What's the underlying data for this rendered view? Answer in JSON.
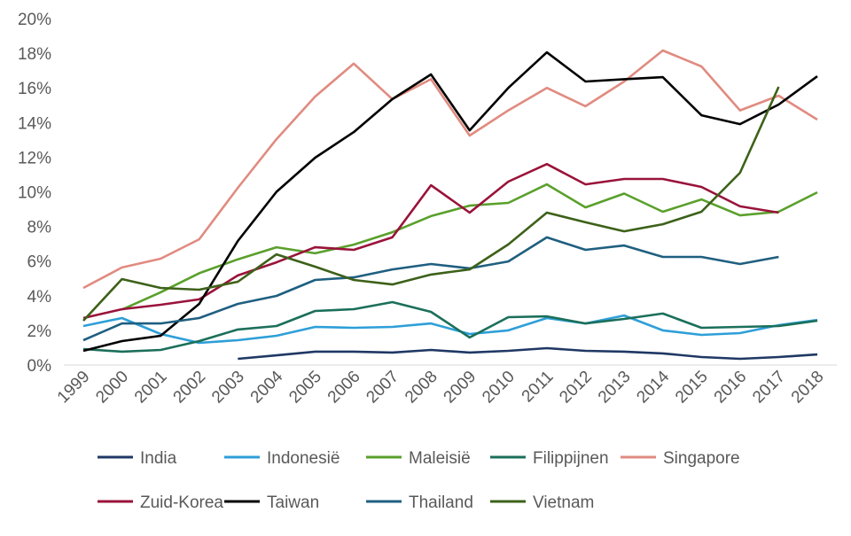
{
  "chart_data": {
    "type": "line",
    "title": "",
    "xlabel": "",
    "ylabel": "",
    "ylim": [
      0,
      20
    ],
    "y_ticks": [
      "0%",
      "2%",
      "4%",
      "6%",
      "8%",
      "10%",
      "12%",
      "14%",
      "16%",
      "18%",
      "20%"
    ],
    "grid": false,
    "legend_position": "bottom",
    "categories": [
      "1999",
      "2000",
      "2001",
      "2002",
      "2003",
      "2004",
      "2005",
      "2006",
      "2007",
      "2008",
      "2009",
      "2010",
      "2011",
      "2012",
      "2013",
      "2014",
      "2015",
      "2016",
      "2017",
      "2018"
    ],
    "series": [
      {
        "name": "India",
        "color": "#1f3864",
        "values": [
          null,
          null,
          null,
          null,
          0.36,
          0.56,
          0.77,
          0.77,
          0.72,
          0.87,
          0.72,
          0.82,
          0.97,
          0.82,
          0.77,
          0.67,
          0.46,
          0.36,
          0.46,
          0.61
        ]
      },
      {
        "name": "Indonesië",
        "color": "#2e9fd8",
        "values": [
          2.25,
          2.71,
          1.79,
          1.28,
          1.43,
          1.69,
          2.2,
          2.15,
          2.2,
          2.4,
          1.79,
          2.0,
          2.71,
          2.4,
          2.86,
          2.0,
          1.74,
          1.84,
          2.3,
          2.6
        ]
      },
      {
        "name": "Maleisië",
        "color": "#5aa02c",
        "values": [
          null,
          3.2,
          4.2,
          5.3,
          6.1,
          6.8,
          6.45,
          6.95,
          7.67,
          8.6,
          9.2,
          9.36,
          10.43,
          9.1,
          9.9,
          8.85,
          9.56,
          8.64,
          8.85,
          9.97
        ]
      },
      {
        "name": "Filippijnen",
        "color": "#1b6f5a",
        "values": [
          0.92,
          0.77,
          0.87,
          1.38,
          2.05,
          2.25,
          3.12,
          3.22,
          3.63,
          3.07,
          1.59,
          2.76,
          2.81,
          2.4,
          2.66,
          2.97,
          2.15,
          2.2,
          2.25,
          2.56
        ]
      },
      {
        "name": "Singapore",
        "color": "#e08b80",
        "values": [
          4.45,
          5.63,
          6.14,
          7.26,
          10.23,
          13.04,
          15.5,
          17.4,
          15.35,
          16.5,
          13.25,
          14.7,
          16.0,
          14.94,
          16.37,
          18.16,
          17.24,
          14.7,
          15.55,
          14.17
        ]
      },
      {
        "name": "Zuid-Korea",
        "color": "#99133a",
        "values": [
          2.71,
          3.22,
          3.48,
          3.79,
          5.17,
          5.93,
          6.8,
          6.65,
          7.37,
          10.38,
          8.8,
          10.59,
          11.6,
          10.43,
          10.74,
          10.74,
          10.28,
          9.16,
          8.8,
          null
        ]
      },
      {
        "name": "Taiwan",
        "color": "#000000",
        "values": [
          0.82,
          1.38,
          1.69,
          3.53,
          7.16,
          10.0,
          11.97,
          13.45,
          15.35,
          16.78,
          13.55,
          16.0,
          18.05,
          16.37,
          16.5,
          16.62,
          14.42,
          13.91,
          15.04,
          16.67
        ]
      },
      {
        "name": "Thailand",
        "color": "#1f5f80",
        "values": [
          1.43,
          2.4,
          2.4,
          2.71,
          3.53,
          3.99,
          4.91,
          5.06,
          5.52,
          5.83,
          5.58,
          5.98,
          7.37,
          6.65,
          6.9,
          6.24,
          6.24,
          5.83,
          6.24,
          null
        ]
      },
      {
        "name": "Vietnam",
        "color": "#3d6119",
        "values": [
          2.56,
          4.96,
          4.45,
          4.35,
          4.81,
          6.39,
          5.68,
          4.91,
          4.65,
          5.22,
          5.52,
          6.96,
          8.8,
          8.24,
          7.72,
          8.13,
          8.85,
          11.1,
          16.06,
          null
        ]
      }
    ]
  }
}
